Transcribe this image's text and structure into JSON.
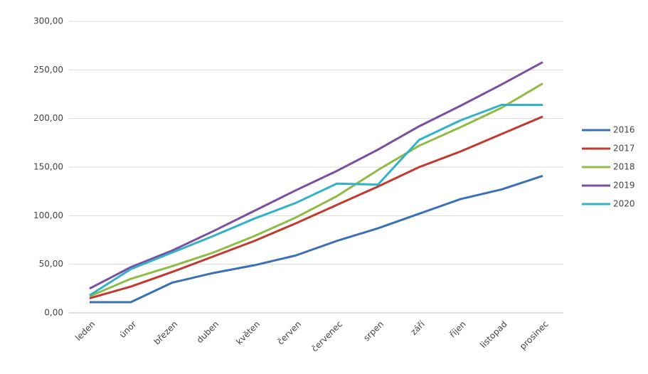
{
  "chart_data": {
    "type": "line",
    "categories": [
      "leden",
      "únor",
      "březen",
      "duben",
      "květen",
      "červen",
      "červenec",
      "srpen",
      "září",
      "říjen",
      "listopad",
      "prosinec"
    ],
    "series": [
      {
        "name": "2016",
        "color": "#3a70b8",
        "values": [
          11,
          11,
          31,
          41,
          49,
          59,
          74,
          87,
          102,
          117,
          127,
          141
        ]
      },
      {
        "name": "2017",
        "color": "#c2392f",
        "values": [
          15,
          27,
          42,
          58,
          74,
          92,
          111,
          130,
          150,
          166,
          184,
          202
        ]
      },
      {
        "name": "2018",
        "color": "#8fbc45",
        "values": [
          17,
          35,
          48,
          62,
          79,
          98,
          120,
          147,
          172,
          191,
          211,
          236
        ]
      },
      {
        "name": "2019",
        "color": "#7b4fa0",
        "values": [
          25,
          47,
          64,
          84,
          105,
          126,
          146,
          168,
          192,
          213,
          235,
          258
        ]
      },
      {
        "name": "2020",
        "color": "#31b2c8",
        "values": [
          18,
          45,
          62,
          79,
          97,
          113,
          133,
          132,
          178,
          198,
          214,
          214
        ]
      }
    ],
    "ylim": [
      0,
      300
    ],
    "yticks": [
      {
        "value": 0,
        "label": "0,00"
      },
      {
        "value": 50,
        "label": "50,00"
      },
      {
        "value": 100,
        "label": "100,00"
      },
      {
        "value": 150,
        "label": "150,00"
      },
      {
        "value": 200,
        "label": "200,00"
      },
      {
        "value": 250,
        "label": "250,00"
      },
      {
        "value": 300,
        "label": "300,00"
      }
    ],
    "grid": true,
    "legend": "right"
  }
}
